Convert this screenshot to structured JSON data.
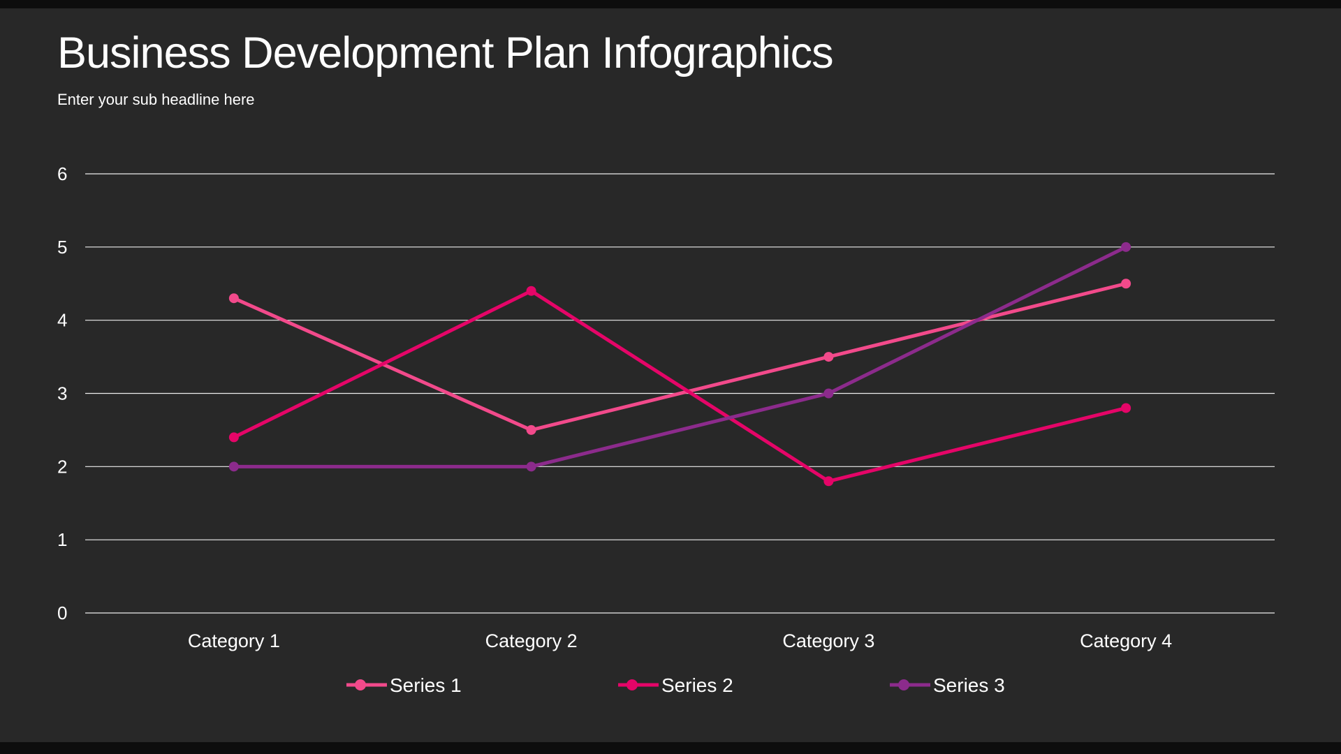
{
  "page": {
    "title": "Business Development Plan Infographics",
    "subtitle": "Enter your sub headline here"
  },
  "colors": {
    "background": "#282828",
    "frame_bar": "#0d0d0d",
    "text": "#ffffff",
    "gridline": "#ededed"
  },
  "chart_data": {
    "type": "line",
    "title": "Business Development Plan Infographics",
    "subtitle": "Enter your sub headline here",
    "categories": [
      "Category 1",
      "Category 2",
      "Category 3",
      "Category 4"
    ],
    "series": [
      {
        "name": "Series 1",
        "color": "#F24A8B",
        "values": [
          4.3,
          2.5,
          3.5,
          4.5
        ]
      },
      {
        "name": "Series 2",
        "color": "#E50568",
        "values": [
          2.4,
          4.4,
          1.8,
          2.8
        ]
      },
      {
        "name": "Series 3",
        "color": "#8C2B8C",
        "values": [
          2.0,
          2.0,
          3.0,
          5.0
        ]
      }
    ],
    "xlabel": "",
    "ylabel": "",
    "ylim": [
      0,
      6
    ],
    "yticks": [
      0,
      1,
      2,
      3,
      4,
      5,
      6
    ],
    "grid": true,
    "legend_position": "bottom"
  }
}
